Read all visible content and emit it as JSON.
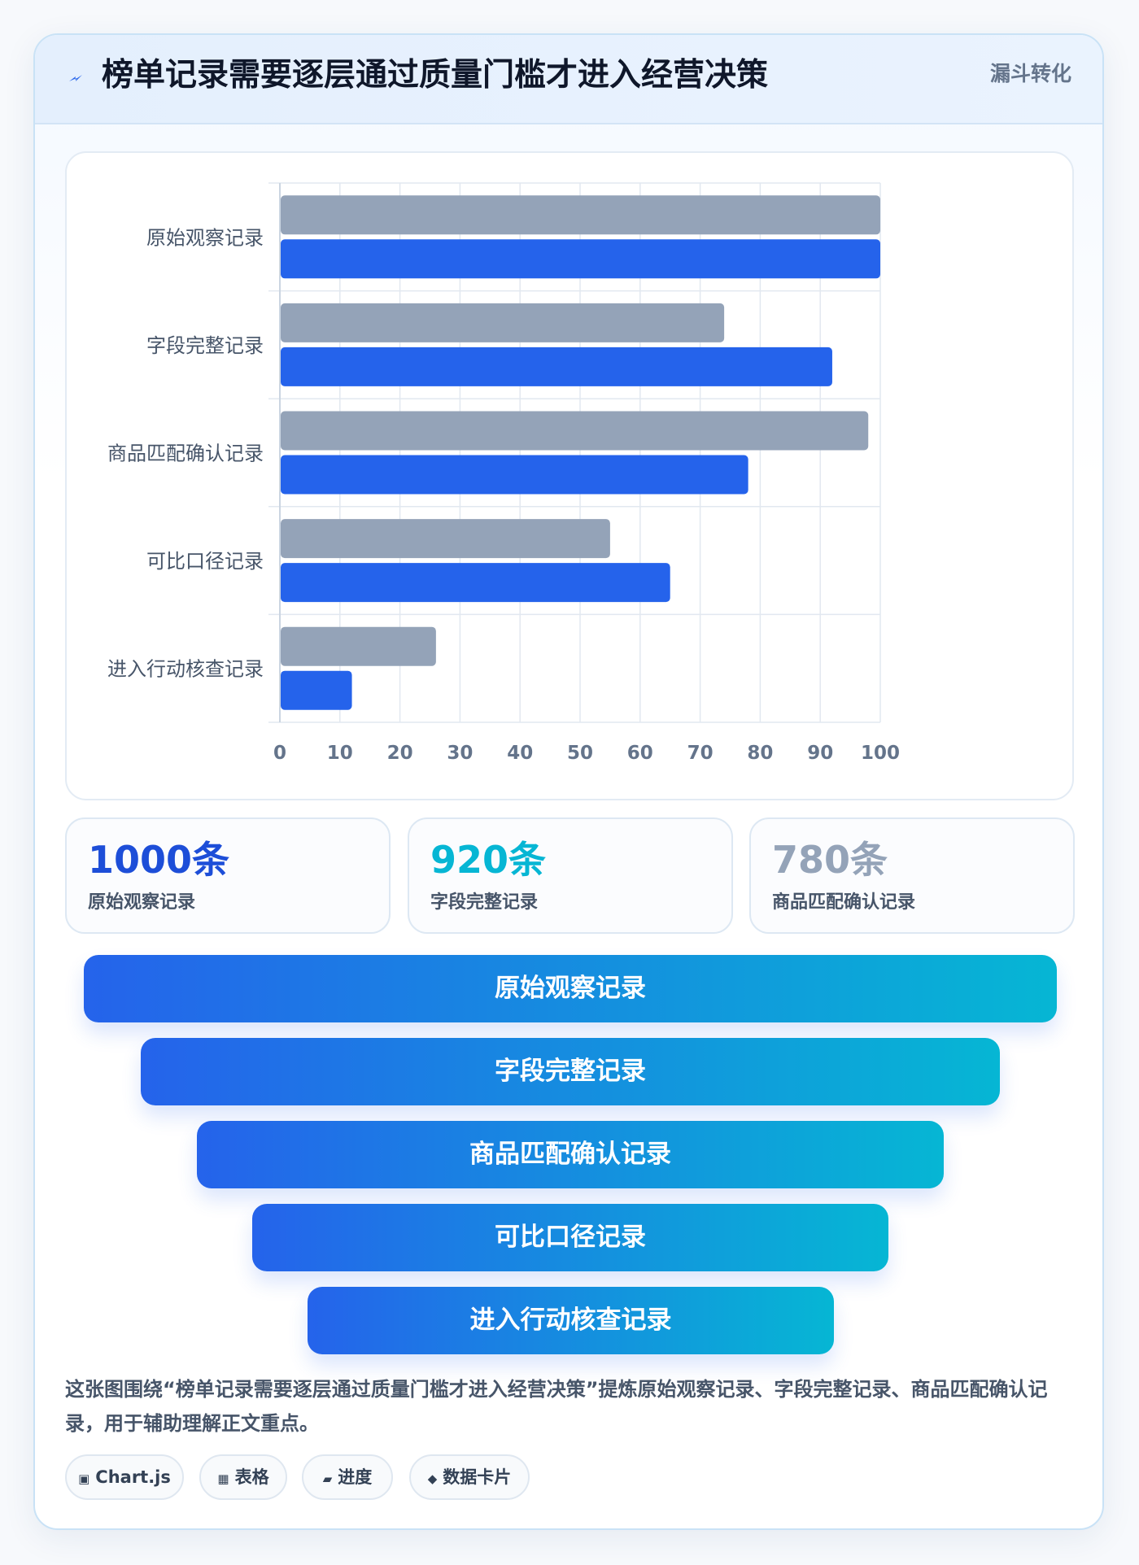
{
  "header": {
    "icon": "bolt-icon",
    "title": "榜单记录需要逐层通过质量门槛才进入经营决策",
    "tag": "漏斗转化"
  },
  "chart_data": {
    "type": "bar",
    "orientation": "horizontal",
    "categories": [
      "原始观察记录",
      "字段完整记录",
      "商品匹配确认记录",
      "可比口径记录",
      "进入行动核查记录"
    ],
    "series": [
      {
        "color": "#94a3b8",
        "values": [
          100,
          74,
          98,
          55,
          26
        ]
      },
      {
        "color": "#2563eb",
        "values": [
          100,
          92,
          78,
          65,
          12
        ]
      }
    ],
    "xlim": [
      0,
      100
    ],
    "xticks": [
      "0",
      "10",
      "20",
      "30",
      "40",
      "50",
      "60",
      "70",
      "80",
      "90",
      "100"
    ],
    "grid": true,
    "legend": "none"
  },
  "stats": [
    {
      "value": "1000条",
      "label": "原始观察记录",
      "color": "#1d4ed8"
    },
    {
      "value": "920条",
      "label": "字段完整记录",
      "color": "#06b6d4"
    },
    {
      "value": "780条",
      "label": "商品匹配确认记录",
      "color": "#94a3b8"
    }
  ],
  "funnel": [
    "原始观察记录",
    "字段完整记录",
    "商品匹配确认记录",
    "可比口径记录",
    "进入行动核查记录"
  ],
  "summary": "这张图围绕“榜单记录需要逐层通过质量门槛才进入经营决策”提炼原始观察记录、字段完整记录、商品匹配确认记录，用于辅助理解正文重点。",
  "chips": [
    {
      "icon": "▣",
      "label": "Chart.js"
    },
    {
      "icon": "▦",
      "label": "表格"
    },
    {
      "icon": "▰",
      "label": "进度"
    },
    {
      "icon": "◆",
      "label": "数据卡片"
    }
  ]
}
